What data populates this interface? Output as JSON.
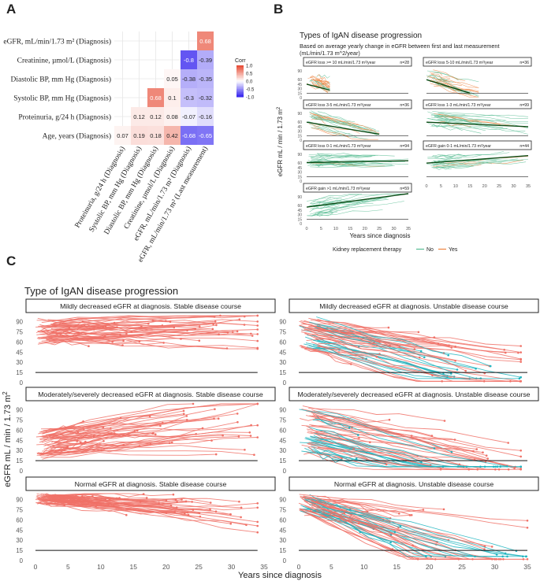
{
  "panel_labels": {
    "a": "A",
    "b": "B",
    "c": "C"
  },
  "colors": {
    "pos": "#e8503a",
    "neg": "#3c2bef",
    "mid": "#ffffff",
    "kidney_no": "#5fbf98",
    "kidney_yes": "#ef8a4a",
    "c_red": "#f07167",
    "c_teal": "#20b5c0",
    "grid": "#e6e6e6",
    "border": "#222222"
  },
  "chart_data": [
    {
      "id": "A",
      "type": "heatmap",
      "title": "",
      "rows": [
        "eGFR, mL/min/1.73 m² (Diagnosis)",
        "Creatinine, µmol/L (Diagnosis)",
        "Diastolic BP, mm Hg (Diagnosis)",
        "Systolic BP, mm Hg (Diagnosis)",
        "Proteinuria, g/24 h (Diagnosis)",
        "Age, years (Diagnosis)"
      ],
      "cols": [
        "Proteinuria, g/24 h (Diagnosis)",
        "Systolic BP, mm Hg (Diagnosis)",
        "Diastolic BP, mm Hg (Diagnosis)",
        "Creatinine, µmol/L (Diagnosis)",
        "eGFR, mL/min/1.73 m² (Diagnosis)",
        "eGFR, mL/min/1.73 m² (Last measurement)"
      ],
      "cells": [
        {
          "r": 0,
          "c": 5,
          "v": 0.68,
          "label": "0.68"
        },
        {
          "r": 1,
          "c": 4,
          "v": -0.8,
          "label": "-0.8"
        },
        {
          "r": 1,
          "c": 5,
          "v": -0.39,
          "label": "-0.39"
        },
        {
          "r": 2,
          "c": 3,
          "v": 0.05,
          "label": "0.05"
        },
        {
          "r": 2,
          "c": 4,
          "v": -0.38,
          "label": "-0.38"
        },
        {
          "r": 2,
          "c": 5,
          "v": -0.35,
          "label": "-0.35"
        },
        {
          "r": 3,
          "c": 2,
          "v": 0.68,
          "label": "0.68"
        },
        {
          "r": 3,
          "c": 3,
          "v": 0.1,
          "label": "0.1"
        },
        {
          "r": 3,
          "c": 4,
          "v": -0.3,
          "label": "-0.3"
        },
        {
          "r": 3,
          "c": 5,
          "v": -0.32,
          "label": "-0.32"
        },
        {
          "r": 4,
          "c": 1,
          "v": 0.12,
          "label": "0.12"
        },
        {
          "r": 4,
          "c": 2,
          "v": 0.12,
          "label": "0.12"
        },
        {
          "r": 4,
          "c": 3,
          "v": 0.08,
          "label": "0.08"
        },
        {
          "r": 4,
          "c": 4,
          "v": -0.07,
          "label": "-0.07"
        },
        {
          "r": 4,
          "c": 5,
          "v": -0.16,
          "label": "-0.16"
        },
        {
          "r": 5,
          "c": 0,
          "v": 0.07,
          "label": "0.07"
        },
        {
          "r": 5,
          "c": 1,
          "v": 0.19,
          "label": "0.19"
        },
        {
          "r": 5,
          "c": 2,
          "v": 0.18,
          "label": "0.18"
        },
        {
          "r": 5,
          "c": 3,
          "v": 0.42,
          "label": "0.42"
        },
        {
          "r": 5,
          "c": 4,
          "v": -0.68,
          "label": "-0.68"
        },
        {
          "r": 5,
          "c": 5,
          "v": -0.65,
          "label": "-0.65"
        }
      ],
      "legend": {
        "title": "Corr",
        "ticks": [
          "1.0",
          "0.5",
          "0.0",
          "-0.5",
          "-1.0"
        ],
        "tick_values": [
          1.0,
          0.5,
          0.0,
          -0.5,
          -1.0
        ]
      }
    },
    {
      "id": "B",
      "type": "line",
      "title": "Types of IgAN disease progression",
      "subtitle": "Based on average yearly change in eGFR between first and last measurement",
      "subtitle2": "(mL/min/1.73 m^2/year)",
      "xlabel": "Years since diagnosis",
      "ylabel": "eGFR mL / min / 1.73 m",
      "ylabel_sup": "2",
      "xlim": [
        0,
        35
      ],
      "ylim": [
        0,
        100
      ],
      "xticks": [
        "0",
        "5",
        "10",
        "15",
        "20",
        "25",
        "30",
        "35"
      ],
      "xtick_values": [
        0,
        5,
        10,
        15,
        20,
        25,
        30,
        35
      ],
      "yticks": [
        "90",
        "60",
        "45",
        "30",
        "15",
        "0"
      ],
      "ytick_values": [
        90,
        60,
        45,
        30,
        15,
        0
      ],
      "reference_line": 15,
      "legend": {
        "title": "Kidney replacement therapy",
        "items": [
          "No",
          "Yes"
        ]
      },
      "facets": [
        {
          "label": "eGFR loss >= 10 mL/min/1.73 m²/year",
          "n": "n=28",
          "trend": [
            [
              0,
              45
            ],
            [
              8,
              25
            ]
          ],
          "x_range": [
            0,
            8
          ],
          "y_start": [
            35,
            75
          ],
          "slope": [
            -6,
            -1.5
          ],
          "mix": 0.6
        },
        {
          "label": "eGFR loss 5-10 mL/min/1.73 m²/year",
          "n": "n=36",
          "trend": [
            [
              0,
              60
            ],
            [
              15,
              15
            ]
          ],
          "x_range": [
            0,
            18
          ],
          "y_start": [
            40,
            90
          ],
          "slope": [
            -4,
            -1.8
          ],
          "mix": 0.55
        },
        {
          "label": "eGFR loss 3-5 mL/min/1.73 m²/year",
          "n": "n=36",
          "trend": [
            [
              0,
              60
            ],
            [
              25,
              20
            ]
          ],
          "x_range": [
            0,
            25
          ],
          "y_start": [
            40,
            95
          ],
          "slope": [
            -3,
            -1.2
          ],
          "mix": 0.45
        },
        {
          "label": "eGFR loss 1-3 mL/min/1.73 m²/year",
          "n": "n=99",
          "trend": [
            [
              0,
              60
            ],
            [
              35,
              45
            ]
          ],
          "x_range": [
            0,
            35
          ],
          "y_start": [
            45,
            95
          ],
          "slope": [
            -1.6,
            -0.3
          ],
          "mix": 0.15
        },
        {
          "label": "eGFR loss 0-1 mL/min/1.73 m²/year",
          "n": "n=94",
          "trend": [
            [
              0,
              62
            ],
            [
              35,
              68
            ]
          ],
          "x_range": [
            0,
            35
          ],
          "y_start": [
            45,
            90
          ],
          "slope": [
            -0.3,
            0.3
          ],
          "mix": 0.05
        },
        {
          "label": "eGFR gain 0-1 mL/min/1.73 m²/year",
          "n": "n=44",
          "trend": [
            [
              0,
              60
            ],
            [
              35,
              85
            ]
          ],
          "x_range": [
            0,
            35
          ],
          "y_start": [
            40,
            85
          ],
          "slope": [
            0.2,
            0.9
          ],
          "mix": 0.05
        },
        {
          "label": "eGFR gain >1 mL/min/1.73 m²/year",
          "n": "n=59",
          "trend": [
            [
              0,
              55
            ],
            [
              35,
              100
            ]
          ],
          "x_range": [
            0,
            35
          ],
          "y_start": [
            25,
            80
          ],
          "slope": [
            0.6,
            2.5
          ],
          "mix": 0.05
        }
      ]
    },
    {
      "id": "C",
      "type": "line",
      "title": "Type of IgAN disease progression",
      "xlabel": "Years since diagnosis",
      "ylabel": "eGFR mL / min / 1.73 m",
      "ylabel_sup": "2",
      "xlim": [
        0,
        35
      ],
      "ylim": [
        0,
        100
      ],
      "xticks": [
        "0",
        "5",
        "10",
        "15",
        "20",
        "25",
        "30",
        "35"
      ],
      "xtick_values": [
        0,
        5,
        10,
        15,
        20,
        25,
        30,
        35
      ],
      "yticks": [
        "90",
        "75",
        "60",
        "45",
        "30",
        "15",
        "0"
      ],
      "ytick_values": [
        90,
        75,
        60,
        45,
        30,
        15,
        0
      ],
      "reference_line": 15,
      "facets": [
        {
          "label": "Mildly decreased eGFR at diagnosis. Stable disease course",
          "col": 0,
          "row": 0,
          "y_start": [
            60,
            92
          ],
          "slope": [
            -0.5,
            0.6
          ],
          "x_range": [
            0,
            34
          ],
          "teal": 0
        },
        {
          "label": "Mildly decreased eGFR at diagnosis. Unstable disease course",
          "col": 1,
          "row": 0,
          "y_start": [
            50,
            95
          ],
          "slope": [
            -3.5,
            -0.4
          ],
          "x_range": [
            0,
            34
          ],
          "teal": 0.3
        },
        {
          "label": "Moderately/severely decreased eGFR at diagnosis. Stable disease course",
          "col": 0,
          "row": 1,
          "y_start": [
            20,
            60
          ],
          "slope": [
            -0.3,
            2.2
          ],
          "x_range": [
            0,
            34
          ],
          "teal": 0
        },
        {
          "label": "Moderately/severely decreased eGFR at diagnosis. Unstable disease course",
          "col": 1,
          "row": 1,
          "y_start": [
            25,
            95
          ],
          "slope": [
            -3,
            -0.3
          ],
          "x_range": [
            0,
            34
          ],
          "teal": 0.35
        },
        {
          "label": "Normal eGFR at diagnosis. Stable disease course",
          "col": 0,
          "row": 2,
          "y_start": [
            85,
            98
          ],
          "slope": [
            -1.4,
            0.05
          ],
          "x_range": [
            0,
            34
          ],
          "teal": 0
        },
        {
          "label": "Normal eGFR at diagnosis. Unstable disease course",
          "col": 1,
          "row": 2,
          "y_start": [
            70,
            100
          ],
          "slope": [
            -5,
            -0.8
          ],
          "x_range": [
            0,
            35
          ],
          "teal": 0.3
        }
      ]
    }
  ]
}
